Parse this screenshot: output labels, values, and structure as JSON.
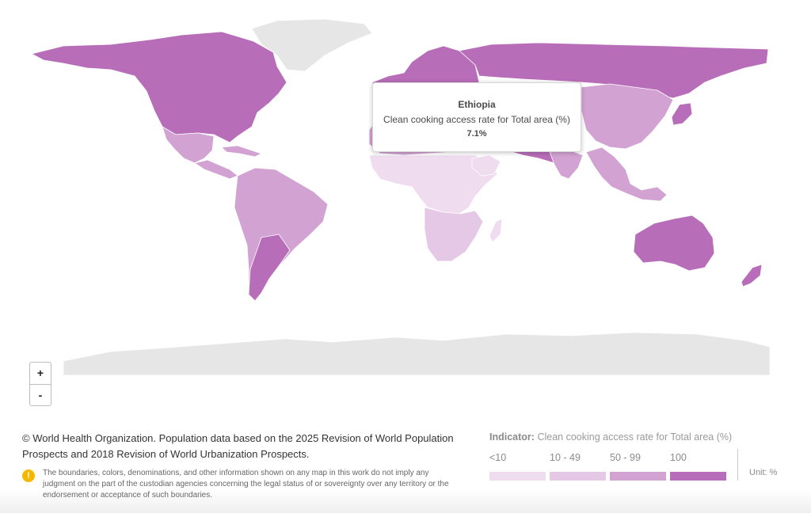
{
  "colors": {
    "no_data": "#e6e6e6",
    "lt10": "#efdcef",
    "b10_49": "#e5c8e5",
    "b50_99": "#d2a2d2",
    "c100": "#b86db8"
  },
  "tooltip": {
    "country": "Ethiopia",
    "indicator": "Clean cooking access rate for Total area (%)",
    "value": "7.1%"
  },
  "zoom": {
    "in_label": "+",
    "out_label": "-"
  },
  "footer": {
    "copyright": "© World Health Organization. Population data based on the 2025 Revision of World Population Prospects and 2018 Revision of World Urbanization Prospects.",
    "disclaimer_icon": "!",
    "disclaimer": "The boundaries, colors, denominations, and other information shown on any map in this work do not imply any judgment on the part of the custodian agencies concerning the legal status of or sovereignty over any territory or the endorsement or acceptance of such boundaries."
  },
  "legend": {
    "indicator_label": "Indicator:",
    "indicator_value": "Clean cooking access rate for Total area (%)",
    "unit": "Unit: %",
    "bins": [
      {
        "label": "<10",
        "color_key": "lt10"
      },
      {
        "label": "10 - 49",
        "color_key": "b10_49"
      },
      {
        "label": "50 - 99",
        "color_key": "b50_99"
      },
      {
        "label": "100",
        "color_key": "c100"
      }
    ]
  }
}
